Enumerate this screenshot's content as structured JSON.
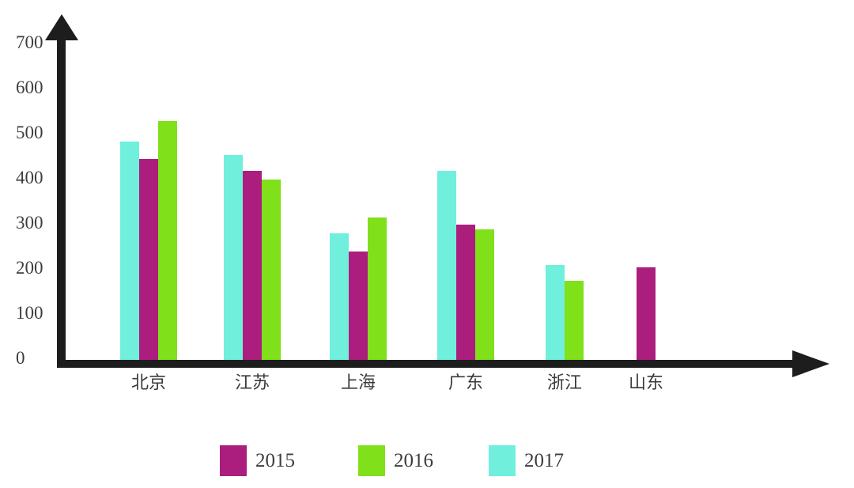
{
  "chart_data": {
    "type": "bar",
    "title": "",
    "xlabel": "",
    "ylabel": "",
    "categories": [
      "北京",
      "江苏",
      "上海",
      "广东",
      "浙江",
      "山东"
    ],
    "category_slugs": [
      "beijing",
      "jiangsu",
      "shanghai",
      "guangdong",
      "zhejiang",
      "shandong"
    ],
    "series": [
      {
        "name": "2015",
        "color": "#ab1e7d",
        "values": [
          445,
          420,
          240,
          300,
          null,
          205
        ]
      },
      {
        "name": "2016",
        "color": "#80e01a",
        "values": [
          530,
          400,
          315,
          290,
          175,
          null
        ]
      },
      {
        "name": "2017",
        "color": "#70efdc",
        "values": [
          485,
          455,
          280,
          420,
          210,
          null
        ]
      }
    ],
    "draw_order": [
      "2017",
      "2015",
      "2016"
    ],
    "ylim": [
      0,
      700
    ],
    "yticks": [
      0,
      100,
      200,
      300,
      400,
      500,
      600,
      700
    ],
    "grid": false,
    "legend_position": "bottom"
  },
  "legend": {
    "items": [
      {
        "label": "2015",
        "color": "#ab1e7d"
      },
      {
        "label": "2016",
        "color": "#80e01a"
      },
      {
        "label": "2017",
        "color": "#70efdc"
      }
    ]
  },
  "colors": {
    "axis": "#1d1d1e",
    "tick_text": "#3d3d3d",
    "category_text": "#3a3a3a",
    "legend_text": "#3d3d3d",
    "background": "#ffffff"
  }
}
